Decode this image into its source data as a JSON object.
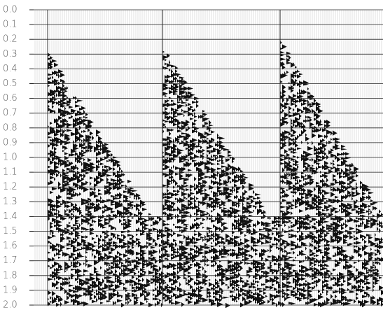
{
  "chart_data": {
    "type": "seismic",
    "ylim": [
      0,
      2
    ],
    "yticks": [
      {
        "value": 0,
        "label": "0.0"
      },
      0.1,
      0.2,
      0.3,
      0.4,
      0.5,
      0.6,
      0.7,
      0.8,
      0.9,
      {
        "value": 1,
        "label": "1.0"
      },
      1.1,
      1.2,
      1.3,
      1.4,
      1.5,
      1.6,
      1.7,
      1.8,
      1.9,
      {
        "value": 2,
        "label": "2.0"
      }
    ],
    "grid": true,
    "color": "#111111"
  }
}
